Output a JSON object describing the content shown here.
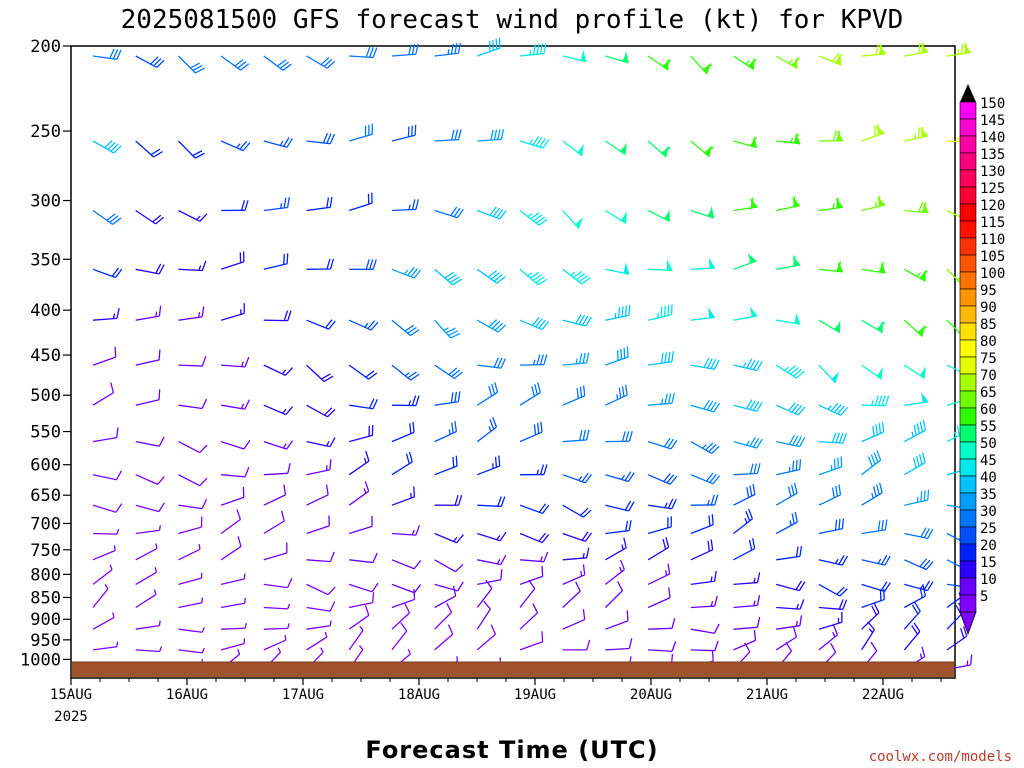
{
  "chart_data": {
    "type": "wind-profile",
    "title": "2025081500 GFS forecast wind profile (kt) for KPVD",
    "xlabel": "Forecast Time (UTC)",
    "ylabel": "",
    "credit": "coolwx.com/models",
    "y_ticks": [
      "200",
      "250",
      "300",
      "350",
      "400",
      "450",
      "500",
      "550",
      "600",
      "650",
      "700",
      "750",
      "800",
      "850",
      "900",
      "950",
      "1000"
    ],
    "x_ticks": [
      "15AUG",
      "16AUG",
      "17AUG",
      "18AUG",
      "19AUG",
      "20AUG",
      "21AUG",
      "22AUG"
    ],
    "x_year": "2025",
    "colorbar": {
      "labels": [
        "5",
        "10",
        "15",
        "20",
        "25",
        "30",
        "35",
        "40",
        "45",
        "50",
        "55",
        "60",
        "65",
        "70",
        "75",
        "80",
        "85",
        "90",
        "95",
        "100",
        "105",
        "110",
        "115",
        "120",
        "125",
        "130",
        "135",
        "140",
        "145",
        "150"
      ],
      "colors": [
        "#7f00ff",
        "#6a00ff",
        "#2a00ff",
        "#0022ff",
        "#0050ff",
        "#0075ff",
        "#009dff",
        "#00c4ff",
        "#00e8e8",
        "#00ffc8",
        "#00ff6e",
        "#2dff00",
        "#6fff00",
        "#a8ff00",
        "#e2ff00",
        "#ffff00",
        "#ffe100",
        "#ffb800",
        "#ff9400",
        "#ff7400",
        "#ff5400",
        "#ff3200",
        "#ff1000",
        "#ff0000",
        "#ff0035",
        "#ff005a",
        "#ff007d",
        "#ff00a5",
        "#ff00cf",
        "#ff00f5"
      ]
    },
    "wind_rows": [
      {
        "level": 200,
        "speed": [
          30,
          28,
          30,
          32,
          30,
          32,
          30,
          32,
          34,
          40,
          45,
          50,
          55,
          60,
          62,
          64,
          66,
          70,
          72,
          72,
          74
        ]
      },
      {
        "level": 250,
        "speed": [
          40,
          20,
          22,
          25,
          25,
          28,
          30,
          28,
          32,
          38,
          45,
          52,
          56,
          58,
          60,
          62,
          64,
          68,
          72,
          74,
          75
        ]
      },
      {
        "level": 300,
        "speed": [
          30,
          18,
          15,
          22,
          25,
          20,
          22,
          25,
          30,
          40,
          45,
          50,
          52,
          55,
          56,
          60,
          62,
          64,
          66,
          68,
          70
        ]
      },
      {
        "level": 350,
        "speed": [
          20,
          18,
          15,
          18,
          20,
          22,
          28,
          35,
          40,
          42,
          45,
          46,
          48,
          50,
          52,
          55,
          58,
          60,
          62,
          64,
          66
        ]
      },
      {
        "level": 400,
        "speed": [
          15,
          14,
          14,
          15,
          18,
          20,
          25,
          30,
          36,
          38,
          40,
          42,
          44,
          46,
          48,
          50,
          52,
          55,
          58,
          60,
          62
        ]
      },
      {
        "level": 450,
        "speed": [
          12,
          12,
          12,
          14,
          16,
          18,
          22,
          26,
          30,
          32,
          34,
          36,
          38,
          40,
          42,
          44,
          46,
          48,
          50,
          52,
          54
        ]
      },
      {
        "level": 500,
        "speed": [
          10,
          10,
          12,
          14,
          16,
          18,
          20,
          24,
          28,
          30,
          32,
          32,
          34,
          36,
          38,
          40,
          42,
          44,
          46,
          48,
          50
        ]
      },
      {
        "level": 550,
        "speed": [
          10,
          10,
          10,
          12,
          14,
          16,
          18,
          22,
          25,
          27,
          28,
          30,
          30,
          32,
          34,
          36,
          38,
          40,
          42,
          44,
          46
        ]
      },
      {
        "level": 600,
        "speed": [
          8,
          8,
          10,
          12,
          12,
          14,
          16,
          20,
          22,
          24,
          24,
          26,
          26,
          28,
          30,
          32,
          34,
          36,
          38,
          40,
          42
        ]
      },
      {
        "level": 650,
        "speed": [
          8,
          8,
          8,
          10,
          10,
          12,
          14,
          16,
          18,
          20,
          20,
          22,
          22,
          24,
          26,
          28,
          30,
          32,
          34,
          36,
          38
        ]
      },
      {
        "level": 700,
        "speed": [
          6,
          6,
          8,
          8,
          10,
          10,
          12,
          14,
          16,
          16,
          18,
          18,
          20,
          20,
          22,
          24,
          26,
          28,
          30,
          32,
          34
        ]
      },
      {
        "level": 750,
        "speed": [
          6,
          6,
          6,
          8,
          8,
          10,
          10,
          12,
          12,
          14,
          14,
          16,
          16,
          18,
          18,
          20,
          22,
          24,
          26,
          28,
          30
        ]
      },
      {
        "level": 800,
        "speed": [
          5,
          5,
          6,
          6,
          8,
          8,
          10,
          10,
          12,
          12,
          12,
          14,
          14,
          14,
          16,
          16,
          18,
          20,
          22,
          24,
          26
        ]
      },
      {
        "level": 850,
        "speed": [
          5,
          5,
          5,
          6,
          6,
          8,
          8,
          10,
          10,
          10,
          12,
          12,
          12,
          12,
          14,
          14,
          16,
          18,
          20,
          22,
          24
        ]
      },
      {
        "level": 900,
        "speed": [
          5,
          5,
          5,
          5,
          6,
          6,
          8,
          8,
          8,
          10,
          10,
          10,
          10,
          12,
          12,
          12,
          14,
          16,
          18,
          20,
          20
        ]
      },
      {
        "level": 950,
        "speed": [
          5,
          5,
          5,
          5,
          5,
          6,
          6,
          8,
          8,
          8,
          8,
          8,
          10,
          10,
          10,
          10,
          12,
          14,
          16,
          18,
          18
        ]
      },
      {
        "level": 1000,
        "speed": [
          5,
          5,
          5,
          5,
          5,
          5,
          5,
          6,
          6,
          6,
          6,
          6,
          8,
          8,
          8,
          8,
          8,
          10,
          12,
          14,
          14
        ]
      }
    ]
  }
}
